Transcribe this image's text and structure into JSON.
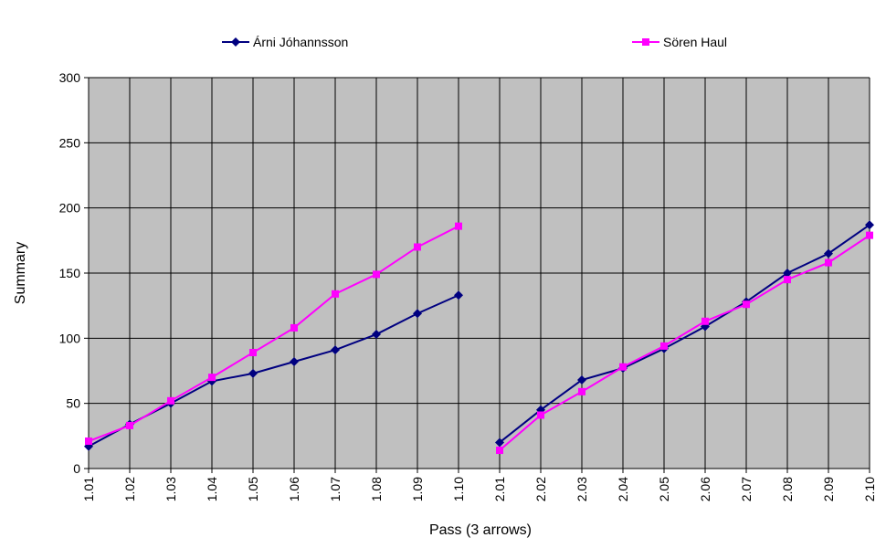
{
  "chart_data": {
    "type": "line",
    "title": "",
    "xlabel": "Pass (3 arrows)",
    "ylabel": "Summary",
    "ylim": [
      0,
      300
    ],
    "yticks": [
      0,
      50,
      100,
      150,
      200,
      250,
      300
    ],
    "grid": true,
    "legend_position": "top",
    "plot_background": "#c0c0c0",
    "categories": [
      "1.01",
      "1.02",
      "1.03",
      "1.04",
      "1.05",
      "1.06",
      "1.07",
      "1.08",
      "1.09",
      "1.10",
      "2.01",
      "2.02",
      "2.03",
      "2.04",
      "2.05",
      "2.06",
      "2.07",
      "2.08",
      "2.09",
      "2.10"
    ],
    "series": [
      {
        "name": "Árni Jóhannsson",
        "color": "#000080",
        "marker": "diamond",
        "values": [
          17,
          34,
          50,
          67,
          73,
          82,
          91,
          103,
          119,
          133,
          20,
          45,
          68,
          77,
          92,
          109,
          128,
          150,
          165,
          187
        ]
      },
      {
        "name": "Sören Haul",
        "color": "#ff00ff",
        "marker": "square",
        "values": [
          21,
          33,
          52,
          70,
          89,
          108,
          134,
          149,
          170,
          186,
          14,
          41,
          59,
          78,
          94,
          113,
          126,
          145,
          158,
          179
        ]
      }
    ],
    "segment_break_after": "1.10"
  }
}
